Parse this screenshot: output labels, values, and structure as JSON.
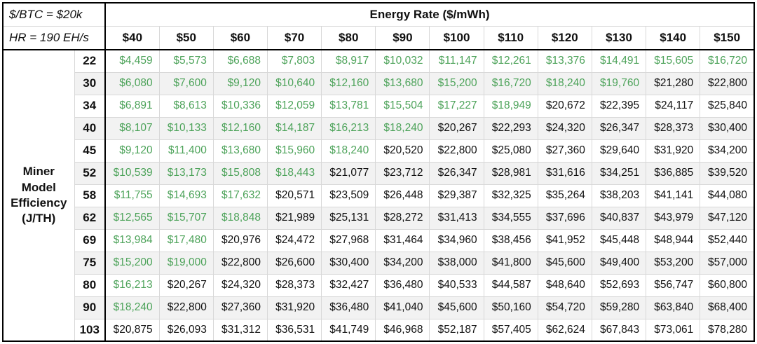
{
  "header": {
    "btc_price": "$/BTC = $20k",
    "hashrate": "HR = 190 EH/s"
  },
  "style": {
    "green_value": "#4da35a",
    "black_value": "#111111",
    "band": "#f2f2f2",
    "grid": "#d8d8d8",
    "border": "#000000"
  },
  "chart_data": {
    "type": "table",
    "title": "Energy Rate ($/mWh)",
    "row_axis_label": "Miner\nModel\nEfficiency\n(J/TH)",
    "column_headers": [
      "$40",
      "$50",
      "$60",
      "$70",
      "$80",
      "$90",
      "$100",
      "$110",
      "$120",
      "$130",
      "$140",
      "$150"
    ],
    "row_headers": [
      "22",
      "30",
      "34",
      "40",
      "45",
      "52",
      "58",
      "62",
      "69",
      "75",
      "80",
      "90",
      "103"
    ],
    "value_prefix": "$",
    "green_threshold": 20000,
    "values": [
      [
        4459,
        5573,
        6688,
        7803,
        8917,
        10032,
        11147,
        12261,
        13376,
        14491,
        15605,
        16720
      ],
      [
        6080,
        7600,
        9120,
        10640,
        12160,
        13680,
        15200,
        16720,
        18240,
        19760,
        21280,
        22800
      ],
      [
        6891,
        8613,
        10336,
        12059,
        13781,
        15504,
        17227,
        18949,
        20672,
        22395,
        24117,
        25840
      ],
      [
        8107,
        10133,
        12160,
        14187,
        16213,
        18240,
        20267,
        22293,
        24320,
        26347,
        28373,
        30400
      ],
      [
        9120,
        11400,
        13680,
        15960,
        18240,
        20520,
        22800,
        25080,
        27360,
        29640,
        31920,
        34200
      ],
      [
        10539,
        13173,
        15808,
        18443,
        21077,
        23712,
        26347,
        28981,
        31616,
        34251,
        36885,
        39520
      ],
      [
        11755,
        14693,
        17632,
        20571,
        23509,
        26448,
        29387,
        32325,
        35264,
        38203,
        41141,
        44080
      ],
      [
        12565,
        15707,
        18848,
        21989,
        25131,
        28272,
        31413,
        34555,
        37696,
        40837,
        43979,
        47120
      ],
      [
        13984,
        17480,
        20976,
        24472,
        27968,
        31464,
        34960,
        38456,
        41952,
        45448,
        48944,
        52440
      ],
      [
        15200,
        19000,
        22800,
        26600,
        30400,
        34200,
        38000,
        41800,
        45600,
        49400,
        53200,
        57000
      ],
      [
        16213,
        20267,
        24320,
        28373,
        32427,
        36480,
        40533,
        44587,
        48640,
        52693,
        56747,
        60800
      ],
      [
        18240,
        22800,
        27360,
        31920,
        36480,
        41040,
        45600,
        50160,
        54720,
        59280,
        63840,
        68400
      ],
      [
        20875,
        26093,
        31312,
        36531,
        41749,
        46968,
        52187,
        57405,
        62624,
        67843,
        73061,
        78280
      ]
    ]
  }
}
